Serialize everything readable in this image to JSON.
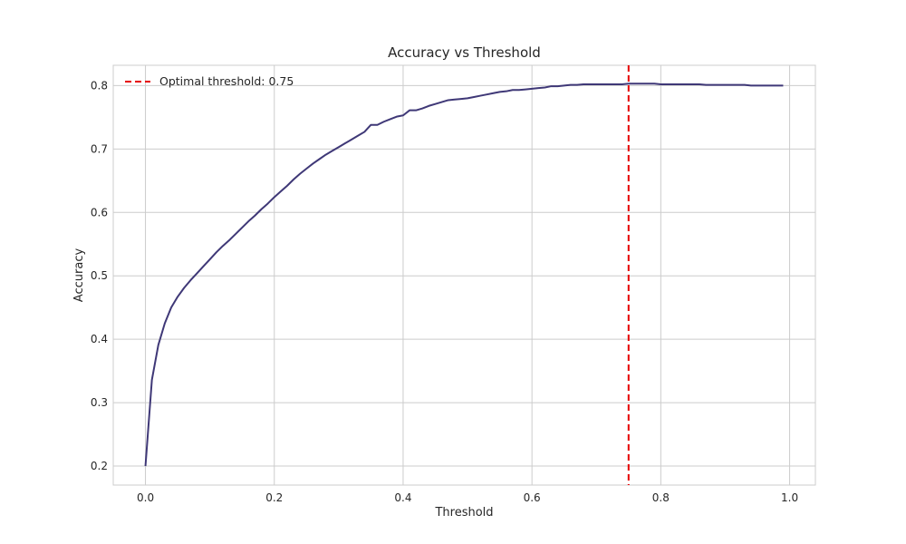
{
  "chart_data": {
    "type": "line",
    "title": "Accuracy vs Threshold",
    "xlabel": "Threshold",
    "ylabel": "Accuracy",
    "xlim": [
      -0.05,
      1.04
    ],
    "ylim": [
      0.17,
      0.832
    ],
    "xticks": [
      0.0,
      0.2,
      0.4,
      0.6,
      0.8,
      1.0
    ],
    "xtick_labels": [
      "0.0",
      "0.2",
      "0.4",
      "0.6",
      "0.8",
      "1.0"
    ],
    "yticks": [
      0.2,
      0.3,
      0.4,
      0.5,
      0.6,
      0.7,
      0.8
    ],
    "ytick_labels": [
      "0.2",
      "0.3",
      "0.4",
      "0.5",
      "0.6",
      "0.7",
      "0.8"
    ],
    "grid": true,
    "legend_position": "top-left",
    "series": [
      {
        "color": "#3f3877",
        "x": [
          0.0,
          0.01,
          0.02,
          0.03,
          0.04,
          0.05,
          0.06,
          0.07,
          0.08,
          0.09,
          0.1,
          0.11,
          0.12,
          0.13,
          0.14,
          0.15,
          0.16,
          0.17,
          0.18,
          0.19,
          0.2,
          0.21,
          0.22,
          0.23,
          0.24,
          0.25,
          0.26,
          0.27,
          0.28,
          0.29,
          0.3,
          0.31,
          0.32,
          0.33,
          0.34,
          0.35,
          0.36,
          0.37,
          0.38,
          0.39,
          0.4,
          0.41,
          0.42,
          0.43,
          0.44,
          0.45,
          0.46,
          0.47,
          0.48,
          0.49,
          0.5,
          0.51,
          0.52,
          0.53,
          0.54,
          0.55,
          0.56,
          0.57,
          0.58,
          0.59,
          0.6,
          0.61,
          0.62,
          0.63,
          0.64,
          0.65,
          0.66,
          0.67,
          0.68,
          0.69,
          0.7,
          0.71,
          0.72,
          0.73,
          0.74,
          0.75,
          0.76,
          0.77,
          0.78,
          0.79,
          0.8,
          0.81,
          0.82,
          0.83,
          0.84,
          0.85,
          0.86,
          0.87,
          0.88,
          0.89,
          0.9,
          0.91,
          0.92,
          0.93,
          0.94,
          0.95,
          0.96,
          0.97,
          0.98,
          0.99
        ],
        "y": [
          0.2,
          0.336,
          0.391,
          0.425,
          0.45,
          0.467,
          0.481,
          0.493,
          0.504,
          0.515,
          0.526,
          0.537,
          0.547,
          0.556,
          0.566,
          0.576,
          0.586,
          0.595,
          0.605,
          0.614,
          0.624,
          0.633,
          0.642,
          0.652,
          0.661,
          0.669,
          0.677,
          0.684,
          0.691,
          0.697,
          0.703,
          0.709,
          0.715,
          0.721,
          0.727,
          0.738,
          0.738,
          0.743,
          0.747,
          0.751,
          0.753,
          0.761,
          0.761,
          0.764,
          0.768,
          0.771,
          0.774,
          0.777,
          0.778,
          0.779,
          0.78,
          0.782,
          0.784,
          0.786,
          0.788,
          0.79,
          0.791,
          0.793,
          0.793,
          0.794,
          0.795,
          0.796,
          0.797,
          0.799,
          0.799,
          0.8,
          0.801,
          0.801,
          0.802,
          0.802,
          0.802,
          0.802,
          0.802,
          0.802,
          0.802,
          0.803,
          0.803,
          0.803,
          0.803,
          0.803,
          0.802,
          0.802,
          0.802,
          0.802,
          0.802,
          0.802,
          0.802,
          0.801,
          0.801,
          0.801,
          0.801,
          0.801,
          0.801,
          0.801,
          0.8,
          0.8,
          0.8,
          0.8,
          0.8,
          0.8
        ]
      }
    ],
    "annotations": [
      {
        "type": "vline",
        "x": 0.75,
        "color": "#e60000",
        "label": "Optimal threshold: 0.75"
      }
    ]
  }
}
